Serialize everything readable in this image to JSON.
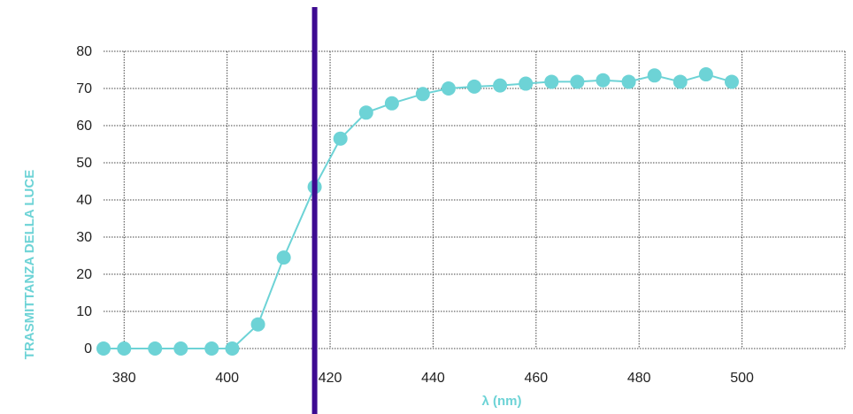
{
  "chart_data": {
    "type": "line",
    "xlabel": "λ (nm)",
    "ylabel": "TRASMITTANZA DELLA LUCE",
    "xlim": [
      376,
      520
    ],
    "ylim": [
      0,
      80
    ],
    "x_ticks": [
      380,
      400,
      420,
      440,
      460,
      480,
      500
    ],
    "y_ticks": [
      0,
      10,
      20,
      30,
      40,
      50,
      60,
      70,
      80
    ],
    "grid": true,
    "marker_line_x": 417,
    "series": [
      {
        "x": [
          376,
          380,
          386,
          391,
          397,
          401,
          406,
          411,
          417,
          422,
          427,
          432,
          438,
          443,
          448,
          453,
          458,
          463,
          468,
          473,
          478,
          483,
          488,
          493,
          498
        ],
        "y": [
          0,
          0,
          0,
          0,
          0,
          0,
          6.5,
          24.5,
          43.5,
          56.5,
          63.5,
          66,
          68.5,
          70,
          70.5,
          70.8,
          71.3,
          71.8,
          71.8,
          72.2,
          71.8,
          73.5,
          71.8,
          73.8,
          71.8
        ]
      }
    ]
  },
  "colors": {
    "series": "#6dd3d6",
    "marker_line": "#3d0a91",
    "grid": "#444444",
    "axis_title": "#6dd3d6"
  }
}
